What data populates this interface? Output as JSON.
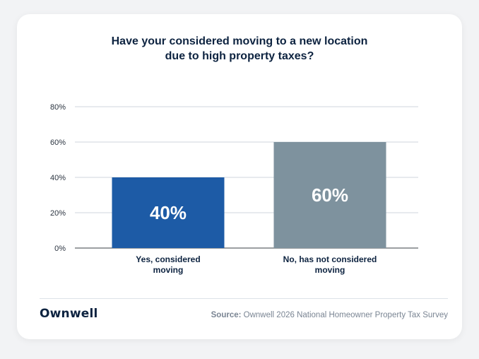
{
  "title_lines": [
    "Have your considered moving to a new location",
    "due to high property taxes?"
  ],
  "brand": "Ownwell",
  "source": {
    "label": "Source:",
    "text": "Ownwell 2026 National Homeowner Property Tax Survey"
  },
  "chart_data": {
    "type": "bar",
    "title": "Have your considered moving to a new location due to high property taxes?",
    "categories": [
      [
        "Yes, considered",
        "moving"
      ],
      [
        "No, has not considered",
        "moving"
      ]
    ],
    "values": [
      40,
      60
    ],
    "data_labels": [
      "40%",
      "60%"
    ],
    "bar_colors": [
      "#1d5ba6",
      "#7e929e"
    ],
    "ylim": [
      0,
      80
    ],
    "yticks": [
      0,
      20,
      40,
      60,
      80
    ],
    "ytick_labels": [
      "0%",
      "20%",
      "40%",
      "60%",
      "80%"
    ],
    "xlabel": "",
    "ylabel": "",
    "grid": true,
    "legend": "none"
  }
}
